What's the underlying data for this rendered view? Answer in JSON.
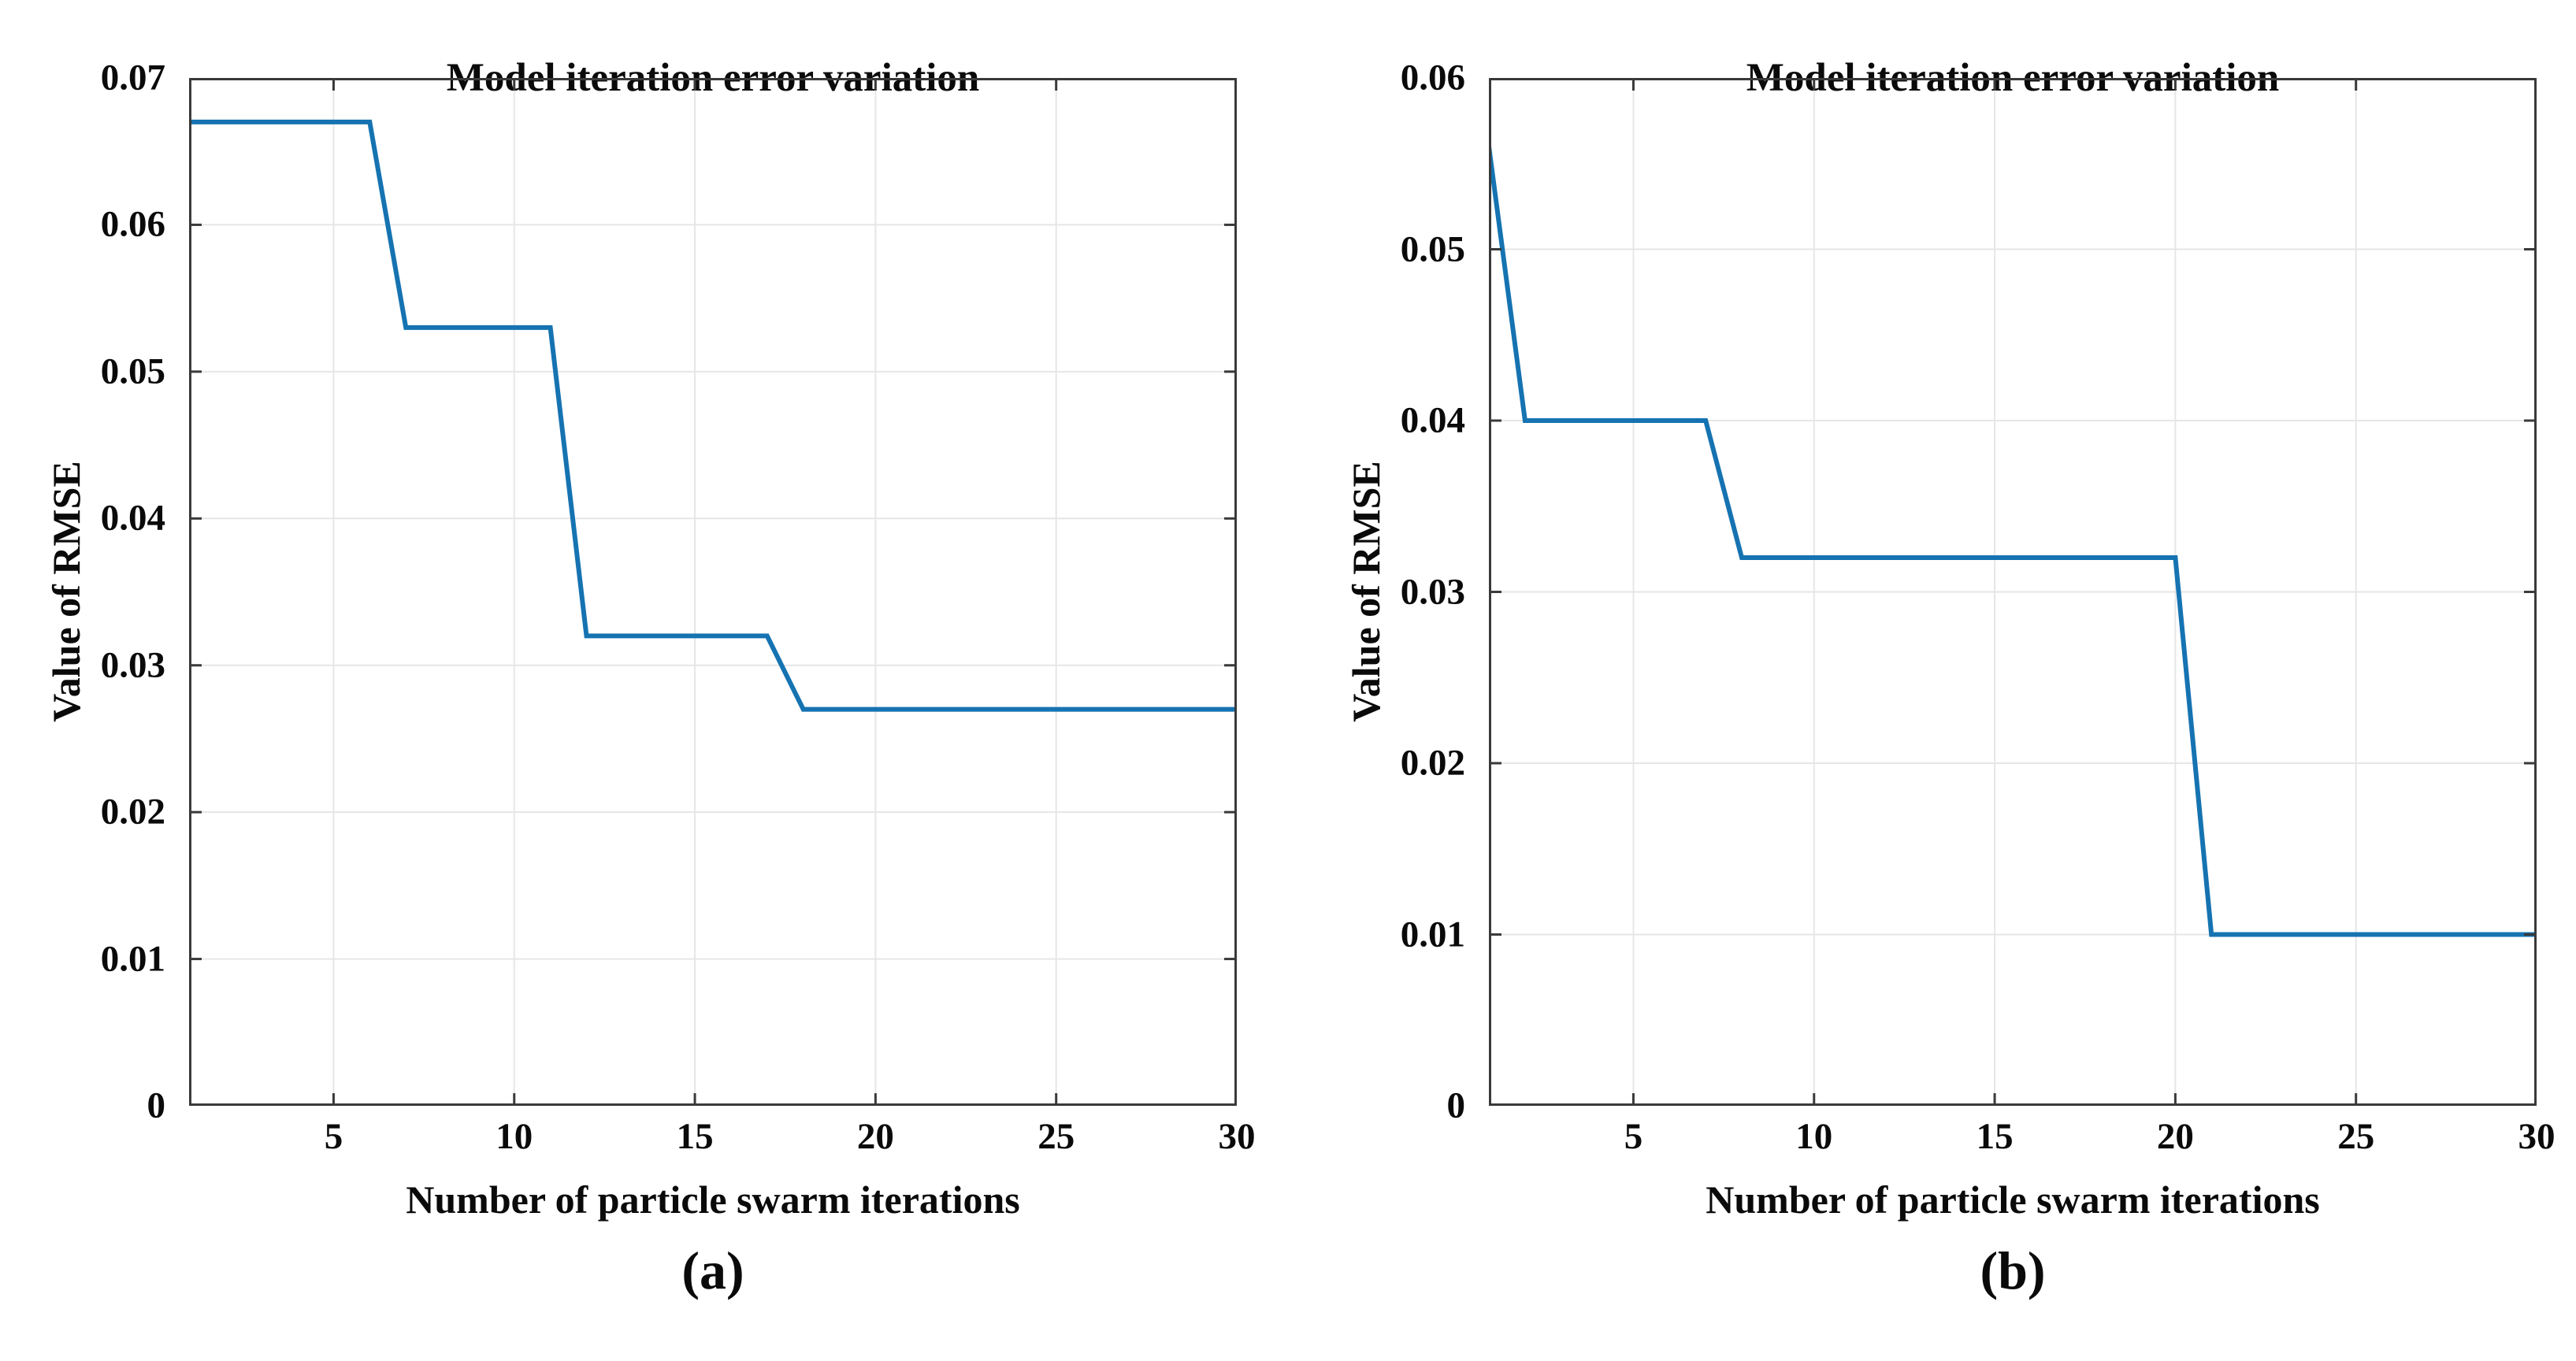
{
  "styles": {
    "line_color": "#1673b1",
    "grid_color": "#e6e6e6",
    "axis_color": "#3a3a3a",
    "text_color": "#0a0a0a",
    "background": "#ffffff"
  },
  "chart_data": [
    {
      "id": "a",
      "type": "line",
      "title": "Model iteration error variation",
      "xlabel": "Number of particle swarm iterations",
      "ylabel": "Value of RMSE",
      "caption": "(a)",
      "grid": true,
      "legend": null,
      "xlim": [
        1,
        30
      ],
      "ylim": [
        0,
        0.07
      ],
      "xticks": [
        5,
        10,
        15,
        20,
        25,
        30
      ],
      "yticks": [
        0,
        0.01,
        0.02,
        0.03,
        0.04,
        0.05,
        0.06,
        0.07
      ],
      "ytick_labels": [
        "0",
        "0.01",
        "0.02",
        "0.03",
        "0.04",
        "0.05",
        "0.06",
        "0.07"
      ],
      "x": [
        1,
        2,
        3,
        4,
        5,
        6,
        7,
        8,
        9,
        10,
        11,
        12,
        13,
        14,
        15,
        16,
        17,
        18,
        19,
        20,
        21,
        22,
        23,
        24,
        25,
        26,
        27,
        28,
        29,
        30
      ],
      "series": [
        {
          "name": "RMSE",
          "values": [
            0.067,
            0.067,
            0.067,
            0.067,
            0.067,
            0.067,
            0.053,
            0.053,
            0.053,
            0.053,
            0.053,
            0.032,
            0.032,
            0.032,
            0.032,
            0.032,
            0.032,
            0.027,
            0.027,
            0.027,
            0.027,
            0.027,
            0.027,
            0.027,
            0.027,
            0.027,
            0.027,
            0.027,
            0.027,
            0.027
          ]
        }
      ]
    },
    {
      "id": "b",
      "type": "line",
      "title": "Model iteration error variation",
      "xlabel": "Number of particle swarm iterations",
      "ylabel": "Value of RMSE",
      "caption": "(b)",
      "grid": true,
      "legend": null,
      "xlim": [
        1,
        30
      ],
      "ylim": [
        0,
        0.06
      ],
      "xticks": [
        5,
        10,
        15,
        20,
        25,
        30
      ],
      "yticks": [
        0,
        0.01,
        0.02,
        0.03,
        0.04,
        0.05,
        0.06
      ],
      "ytick_labels": [
        "0",
        "0.01",
        "0.02",
        "0.03",
        "0.04",
        "0.05",
        "0.06"
      ],
      "x": [
        1,
        2,
        3,
        4,
        5,
        6,
        7,
        8,
        9,
        10,
        11,
        12,
        13,
        14,
        15,
        16,
        17,
        18,
        19,
        20,
        21,
        22,
        23,
        24,
        25,
        26,
        27,
        28,
        29,
        30
      ],
      "series": [
        {
          "name": "RMSE",
          "values": [
            0.056,
            0.04,
            0.04,
            0.04,
            0.04,
            0.04,
            0.04,
            0.032,
            0.032,
            0.032,
            0.032,
            0.032,
            0.032,
            0.032,
            0.032,
            0.032,
            0.032,
            0.032,
            0.032,
            0.032,
            0.01,
            0.01,
            0.01,
            0.01,
            0.01,
            0.01,
            0.01,
            0.01,
            0.01,
            0.01
          ]
        }
      ]
    }
  ]
}
